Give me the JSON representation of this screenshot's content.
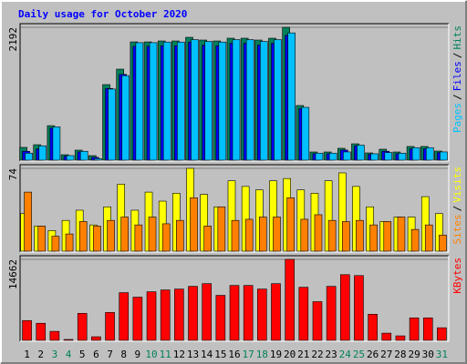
{
  "chart_data": [
    {
      "type": "bar",
      "title": "Daily usage for October 2020",
      "series": [
        {
          "name": "Hits",
          "color": "#00805c",
          "values": [
            224,
            268,
            580,
            104,
            179,
            89,
            1253,
            1506,
            1953,
            1953,
            1968,
            1968,
            2028,
            1983,
            1968,
            2013,
            2013,
            1983,
            2013,
            2192,
            910,
            149,
            149,
            209,
            283,
            134,
            194,
            149,
            239,
            239,
            164
          ]
        },
        {
          "name": "Files",
          "color": "#0000ff",
          "values": [
            160,
            200,
            540,
            80,
            150,
            60,
            1190,
            1420,
            1880,
            1880,
            1890,
            1890,
            1950,
            1900,
            1890,
            1930,
            1930,
            1900,
            1930,
            2060,
            860,
            120,
            120,
            180,
            250,
            110,
            160,
            120,
            200,
            200,
            140
          ]
        },
        {
          "name": "Pages",
          "color": "#00c0ff",
          "values": [
            130,
            250,
            560,
            90,
            160,
            40,
            1180,
            1400,
            1940,
            1940,
            1950,
            1950,
            1990,
            1960,
            1950,
            1990,
            1990,
            1960,
            1990,
            2100,
            880,
            130,
            130,
            150,
            260,
            120,
            140,
            130,
            220,
            220,
            150
          ]
        }
      ],
      "legend_order": [
        "Pages",
        "Files",
        "Hits"
      ],
      "legend_separator": "/",
      "ylim": [
        0,
        2192
      ],
      "yticks": [
        2192
      ]
    },
    {
      "type": "bar",
      "series": [
        {
          "name": "Visits",
          "color": "#ffff00",
          "values": [
            34,
            23,
            19,
            28,
            37,
            24,
            40,
            60,
            37,
            53,
            45,
            52,
            74,
            51,
            40,
            63,
            58,
            55,
            63,
            65,
            55,
            52,
            63,
            70,
            58,
            40,
            27,
            31,
            31,
            49,
            34
          ]
        },
        {
          "name": "Sites",
          "color": "#ff8000",
          "values": [
            53,
            23,
            14,
            16,
            27,
            23,
            28,
            31,
            24,
            31,
            25,
            28,
            48,
            23,
            40,
            28,
            29,
            31,
            31,
            48,
            29,
            33,
            28,
            27,
            28,
            24,
            27,
            31,
            20,
            24,
            15
          ]
        }
      ],
      "legend_order": [
        "Sites",
        "Visits"
      ],
      "legend_separator": "/",
      "ylim": [
        0,
        74
      ],
      "yticks": [
        74
      ]
    },
    {
      "type": "bar",
      "categories": [
        "1",
        "2",
        "3",
        "4",
        "5",
        "6",
        "7",
        "8",
        "9",
        "10",
        "11",
        "12",
        "13",
        "14",
        "15",
        "16",
        "17",
        "18",
        "19",
        "20",
        "21",
        "22",
        "23",
        "24",
        "25",
        "26",
        "27",
        "28",
        "29",
        "30",
        "31"
      ],
      "category_colors": [
        "#000000",
        "#000000",
        "#00805c",
        "#00805c",
        "#000000",
        "#000000",
        "#000000",
        "#000000",
        "#000000",
        "#00805c",
        "#00805c",
        "#000000",
        "#000000",
        "#000000",
        "#000000",
        "#000000",
        "#00805c",
        "#00805c",
        "#000000",
        "#000000",
        "#000000",
        "#000000",
        "#000000",
        "#00805c",
        "#00805c",
        "#000000",
        "#000000",
        "#000000",
        "#000000",
        "#000000",
        "#00805c"
      ],
      "series": [
        {
          "name": "KBytes",
          "color": "#ff0000",
          "values": [
            3706,
            3222,
            1772,
            322,
            4995,
            806,
            5156,
            8700,
            7895,
            8862,
            9184,
            9345,
            9828,
            10312,
            8217,
            9990,
            9990,
            9345,
            10312,
            14662,
            9667,
            7089,
            9828,
            11923,
            11762,
            4834,
            1450,
            967,
            4189,
            4189,
            2417
          ]
        }
      ],
      "legend_order": [
        "KBytes"
      ],
      "ylim": [
        0,
        14662
      ],
      "yticks": [
        14662
      ]
    }
  ]
}
